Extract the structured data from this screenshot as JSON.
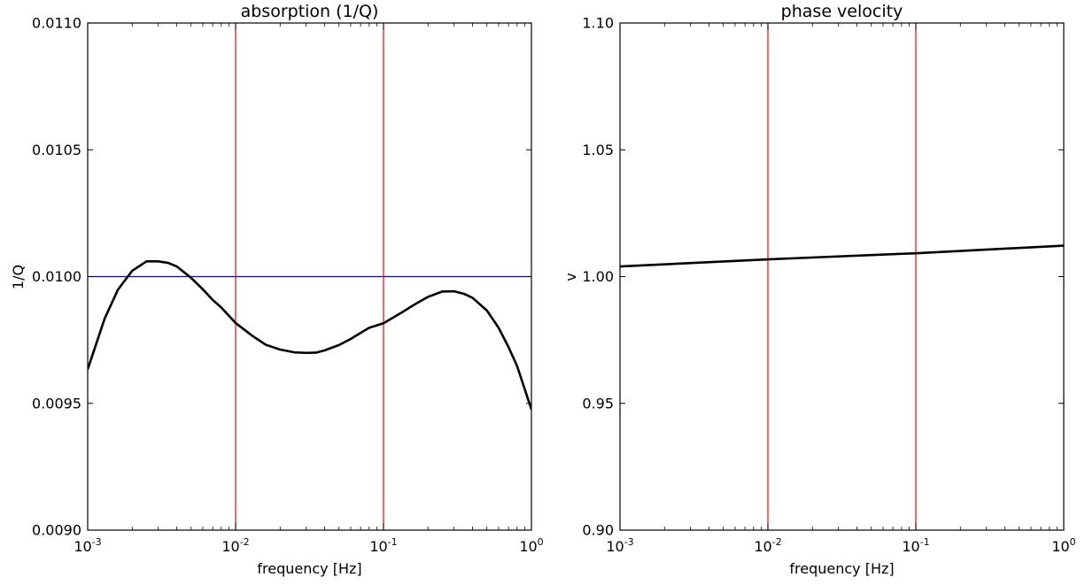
{
  "chart_data": [
    {
      "type": "line",
      "title": "absorption (1/Q)",
      "xlabel": "frequency [Hz]",
      "ylabel": "1/Q",
      "xscale": "log",
      "xlim": [
        0.001,
        1
      ],
      "ylim": [
        0.009,
        0.011
      ],
      "x_ticks": [
        {
          "value": 0.001,
          "base": "10",
          "exp": "-3"
        },
        {
          "value": 0.01,
          "base": "10",
          "exp": "-2"
        },
        {
          "value": 0.1,
          "base": "10",
          "exp": "-1"
        },
        {
          "value": 1,
          "base": "10",
          "exp": "0"
        }
      ],
      "y_ticks": [
        {
          "value": 0.009,
          "label": "0.0090"
        },
        {
          "value": 0.0095,
          "label": "0.0095"
        },
        {
          "value": 0.01,
          "label": "0.0100"
        },
        {
          "value": 0.0105,
          "label": "0.0105"
        },
        {
          "value": 0.011,
          "label": "0.0110"
        }
      ],
      "grid": false,
      "series": [
        {
          "color": "#000000",
          "x": [
            0.001,
            0.0013,
            0.0016,
            0.002,
            0.0025,
            0.003,
            0.0035,
            0.004,
            0.005,
            0.006,
            0.007,
            0.008,
            0.01,
            0.013,
            0.016,
            0.02,
            0.025,
            0.03,
            0.035,
            0.04,
            0.05,
            0.06,
            0.07,
            0.08,
            0.1,
            0.13,
            0.16,
            0.2,
            0.25,
            0.3,
            0.35,
            0.4,
            0.5,
            0.6,
            0.7,
            0.8,
            1.0
          ],
          "y": [
            0.009634,
            0.009833,
            0.009948,
            0.010023,
            0.01006,
            0.01006,
            0.010054,
            0.01004,
            0.009995,
            0.00995,
            0.009908,
            0.009878,
            0.009817,
            0.009766,
            0.009731,
            0.009712,
            0.009701,
            0.009699,
            0.0097,
            0.009709,
            0.00973,
            0.009754,
            0.009778,
            0.009798,
            0.009816,
            0.009855,
            0.009888,
            0.00992,
            0.009941,
            0.009942,
            0.009932,
            0.009916,
            0.009866,
            0.009798,
            0.009722,
            0.009647,
            0.009476
          ]
        }
      ],
      "reference_lines": {
        "horizontal": [
          {
            "value": 0.01,
            "color": "#0000ff"
          }
        ],
        "vertical": [
          {
            "value": 0.01,
            "color": "#ff0000"
          },
          {
            "value": 0.1,
            "color": "#ff0000"
          }
        ]
      }
    },
    {
      "type": "line",
      "title": "phase velocity",
      "xlabel": "frequency [Hz]",
      "ylabel": "v",
      "xscale": "log",
      "xlim": [
        0.001,
        1
      ],
      "ylim": [
        0.9,
        1.1
      ],
      "x_ticks": [
        {
          "value": 0.001,
          "base": "10",
          "exp": "-3"
        },
        {
          "value": 0.01,
          "base": "10",
          "exp": "-2"
        },
        {
          "value": 0.1,
          "base": "10",
          "exp": "-1"
        },
        {
          "value": 1,
          "base": "10",
          "exp": "0"
        }
      ],
      "y_ticks": [
        {
          "value": 0.9,
          "label": "0.90"
        },
        {
          "value": 0.95,
          "label": "0.95"
        },
        {
          "value": 1.0,
          "label": "1.00"
        },
        {
          "value": 1.05,
          "label": "1.05"
        },
        {
          "value": 1.1,
          "label": "1.10"
        }
      ],
      "grid": false,
      "series": [
        {
          "color": "#000000",
          "x": [
            0.001,
            0.01,
            0.1,
            1
          ],
          "y": [
            1.004,
            1.0068,
            1.0092,
            1.0122
          ]
        }
      ],
      "reference_lines": {
        "horizontal": [],
        "vertical": [
          {
            "value": 0.01,
            "color": "#ff0000"
          },
          {
            "value": 0.1,
            "color": "#ff0000"
          }
        ]
      }
    }
  ]
}
